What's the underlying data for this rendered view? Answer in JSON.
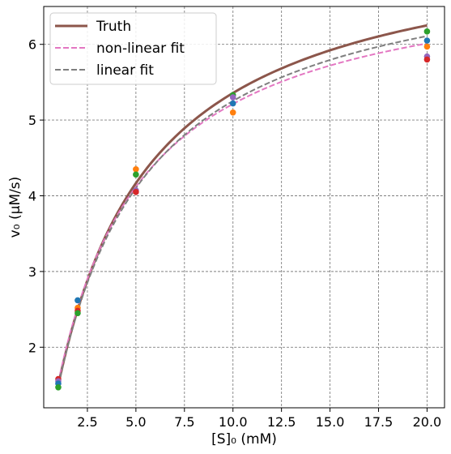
{
  "chart_data": {
    "type": "line",
    "xlabel": "[S]₀ (mM)",
    "ylabel": "v₀ (μM/s)",
    "xlim": [
      0.25,
      20.9
    ],
    "ylim": [
      1.2,
      6.5
    ],
    "xticks": [
      2.5,
      5.0,
      7.5,
      10.0,
      12.5,
      15.0,
      17.5,
      20.0
    ],
    "xtick_labels": [
      "2.5",
      "5.0",
      "7.5",
      "10.0",
      "12.5",
      "15.0",
      "17.5",
      "20.0"
    ],
    "yticks": [
      2,
      3,
      4,
      5,
      6
    ],
    "ytick_labels": [
      "2",
      "3",
      "4",
      "5",
      "6"
    ],
    "grid": true,
    "legend_position": "top-left",
    "series": [
      {
        "name": "Truth",
        "style": "solid",
        "color": "#8c564b",
        "params": {
          "Vmax": 7.5,
          "Km": 4.0
        },
        "x_range": [
          1,
          20
        ]
      },
      {
        "name": "non-linear fit",
        "style": "dashed",
        "color": "#e377c2",
        "params": {
          "Vmax": 7.1,
          "Km": 3.62
        },
        "x_range": [
          1,
          20
        ]
      },
      {
        "name": "linear fit",
        "style": "dashed",
        "color": "#7f7f7f",
        "params": {
          "Vmax": 7.3,
          "Km": 3.9
        },
        "x_range": [
          1,
          20
        ]
      }
    ],
    "scatter": [
      {
        "x": 1,
        "y": 1.58,
        "color": "#d62728"
      },
      {
        "x": 1,
        "y": 1.55,
        "color": "#9467bd"
      },
      {
        "x": 1,
        "y": 1.52,
        "color": "#1f77b4"
      },
      {
        "x": 1,
        "y": 1.47,
        "color": "#2ca02c"
      },
      {
        "x": 2,
        "y": 2.62,
        "color": "#1f77b4"
      },
      {
        "x": 2,
        "y": 2.52,
        "color": "#ff7f0e"
      },
      {
        "x": 2,
        "y": 2.48,
        "color": "#d62728"
      },
      {
        "x": 2,
        "y": 2.45,
        "color": "#2ca02c"
      },
      {
        "x": 5,
        "y": 4.35,
        "color": "#ff7f0e"
      },
      {
        "x": 5,
        "y": 4.28,
        "color": "#2ca02c"
      },
      {
        "x": 5,
        "y": 4.07,
        "color": "#9467bd"
      },
      {
        "x": 5,
        "y": 4.05,
        "color": "#d62728"
      },
      {
        "x": 10,
        "y": 5.33,
        "color": "#2ca02c"
      },
      {
        "x": 10,
        "y": 5.3,
        "color": "#9467bd"
      },
      {
        "x": 10,
        "y": 5.22,
        "color": "#1f77b4"
      },
      {
        "x": 10,
        "y": 5.1,
        "color": "#ff7f0e"
      },
      {
        "x": 20,
        "y": 6.17,
        "color": "#2ca02c"
      },
      {
        "x": 20,
        "y": 6.05,
        "color": "#1f77b4"
      },
      {
        "x": 20,
        "y": 5.97,
        "color": "#ff7f0e"
      },
      {
        "x": 20,
        "y": 5.84,
        "color": "#9467bd"
      },
      {
        "x": 20,
        "y": 5.8,
        "color": "#d62728"
      }
    ]
  }
}
